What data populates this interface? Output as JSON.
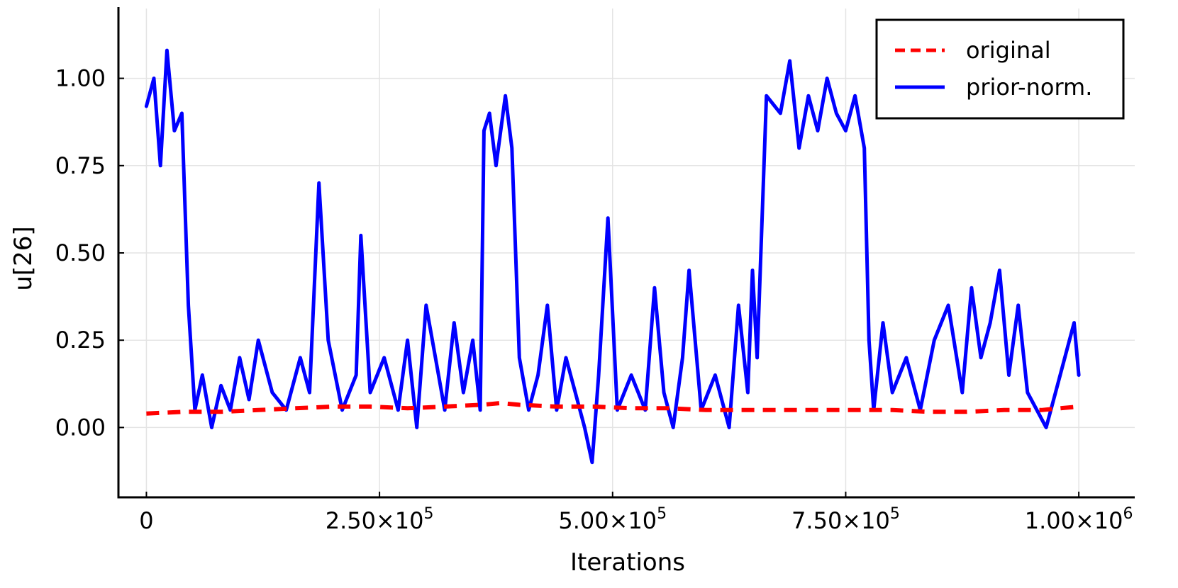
{
  "chart_data": {
    "type": "line",
    "xlabel": "Iterations",
    "ylabel": "u[26]",
    "xlim": [
      -30000,
      1060000
    ],
    "ylim": [
      -0.2,
      1.2
    ],
    "x_ticks": [
      {
        "value": 0,
        "mantissa": "0",
        "exp": ""
      },
      {
        "value": 250000,
        "mantissa": "2.50×10",
        "exp": "5"
      },
      {
        "value": 500000,
        "mantissa": "5.00×10",
        "exp": "5"
      },
      {
        "value": 750000,
        "mantissa": "7.50×10",
        "exp": "5"
      },
      {
        "value": 1000000,
        "mantissa": "1.00×10",
        "exp": "6"
      }
    ],
    "y_ticks": [
      {
        "value": 0,
        "label": "0.00"
      },
      {
        "value": 0.25,
        "label": "0.25"
      },
      {
        "value": 0.5,
        "label": "0.50"
      },
      {
        "value": 0.75,
        "label": "0.75"
      },
      {
        "value": 1.0,
        "label": "1.00"
      }
    ],
    "grid": true,
    "legend_position": "top-right",
    "series": [
      {
        "name": "original",
        "color": "#ff0000",
        "style": "dashed",
        "x": [
          0,
          40000,
          80000,
          120000,
          160000,
          200000,
          240000,
          280000,
          320000,
          360000,
          380000,
          400000,
          440000,
          480000,
          520000,
          560000,
          600000,
          640000,
          680000,
          720000,
          760000,
          800000,
          840000,
          880000,
          920000,
          960000,
          1000000
        ],
        "y": [
          0.04,
          0.045,
          0.045,
          0.05,
          0.055,
          0.06,
          0.06,
          0.055,
          0.06,
          0.065,
          0.07,
          0.065,
          0.06,
          0.06,
          0.055,
          0.055,
          0.05,
          0.05,
          0.05,
          0.05,
          0.05,
          0.05,
          0.045,
          0.045,
          0.05,
          0.05,
          0.06
        ]
      },
      {
        "name": "prior-norm.",
        "color": "#0000ff",
        "style": "solid",
        "x": [
          0,
          8000,
          15000,
          22000,
          30000,
          38000,
          45000,
          52000,
          60000,
          70000,
          80000,
          90000,
          100000,
          110000,
          120000,
          135000,
          150000,
          165000,
          175000,
          185000,
          195000,
          210000,
          225000,
          230000,
          240000,
          255000,
          270000,
          280000,
          290000,
          300000,
          310000,
          320000,
          330000,
          340000,
          350000,
          358000,
          362000,
          368000,
          375000,
          385000,
          392000,
          400000,
          410000,
          420000,
          430000,
          440000,
          450000,
          460000,
          470000,
          478000,
          485000,
          495000,
          505000,
          520000,
          535000,
          545000,
          555000,
          565000,
          575000,
          582000,
          595000,
          610000,
          625000,
          635000,
          645000,
          650000,
          655000,
          665000,
          680000,
          690000,
          700000,
          710000,
          720000,
          730000,
          740000,
          750000,
          760000,
          770000,
          775000,
          780000,
          790000,
          800000,
          815000,
          830000,
          845000,
          860000,
          875000,
          885000,
          895000,
          905000,
          915000,
          925000,
          935000,
          945000,
          955000,
          965000,
          975000,
          985000,
          995000,
          1000000
        ],
        "y": [
          0.92,
          1.0,
          0.75,
          1.08,
          0.85,
          0.9,
          0.35,
          0.05,
          0.15,
          0.0,
          0.12,
          0.05,
          0.2,
          0.08,
          0.25,
          0.1,
          0.05,
          0.2,
          0.1,
          0.7,
          0.25,
          0.05,
          0.15,
          0.55,
          0.1,
          0.2,
          0.05,
          0.25,
          0.0,
          0.35,
          0.2,
          0.05,
          0.3,
          0.1,
          0.25,
          0.05,
          0.85,
          0.9,
          0.75,
          0.95,
          0.8,
          0.2,
          0.05,
          0.15,
          0.35,
          0.05,
          0.2,
          0.1,
          0.0,
          -0.1,
          0.15,
          0.6,
          0.05,
          0.15,
          0.05,
          0.4,
          0.1,
          0.0,
          0.2,
          0.45,
          0.05,
          0.15,
          0.0,
          0.35,
          0.1,
          0.45,
          0.2,
          0.95,
          0.9,
          1.05,
          0.8,
          0.95,
          0.85,
          1.0,
          0.9,
          0.85,
          0.95,
          0.8,
          0.25,
          0.05,
          0.3,
          0.1,
          0.2,
          0.05,
          0.25,
          0.35,
          0.1,
          0.4,
          0.2,
          0.3,
          0.45,
          0.15,
          0.35,
          0.1,
          0.05,
          0.0,
          0.1,
          0.2,
          0.3,
          0.15
        ]
      }
    ]
  }
}
